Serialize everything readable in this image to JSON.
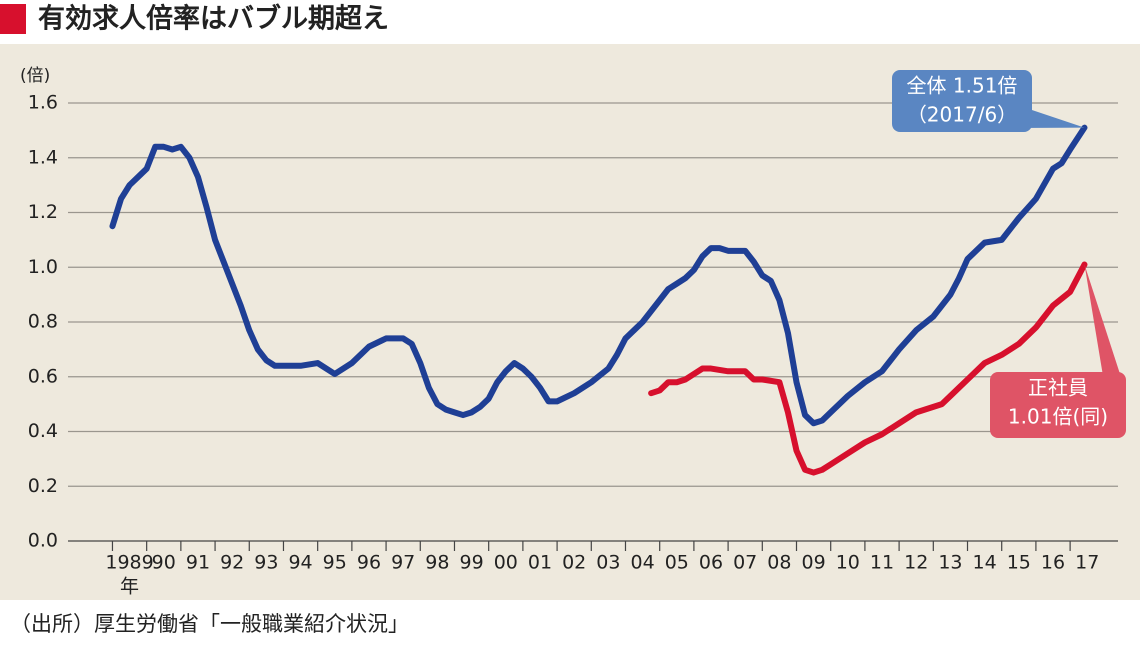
{
  "chart_data": {
    "type": "line",
    "title": "有効求人倍率はバブル期超え",
    "y_unit": "(倍)",
    "x_unit": "年",
    "source": "（出所）厚生労働省「一般職業紹介状況」",
    "xlim": [
      1987.7,
      2018.4
    ],
    "ylim": [
      0,
      1.6
    ],
    "yticks": [
      {
        "value": 0,
        "label": "0.0"
      },
      0.2,
      0.4,
      0.6,
      0.8,
      {
        "value": 1,
        "label": "1.0"
      },
      1.2,
      1.4,
      1.6
    ],
    "xticks": [
      {
        "value": 1989,
        "label": "1989"
      },
      {
        "value": 1990,
        "label": "90"
      },
      {
        "value": 1991,
        "label": "91"
      },
      {
        "value": 1992,
        "label": "92"
      },
      {
        "value": 1993,
        "label": "93"
      },
      {
        "value": 1994,
        "label": "94"
      },
      {
        "value": 1995,
        "label": "95"
      },
      {
        "value": 1996,
        "label": "96"
      },
      {
        "value": 1997,
        "label": "97"
      },
      {
        "value": 1998,
        "label": "98"
      },
      {
        "value": 1999,
        "label": "99"
      },
      {
        "value": 2000,
        "label": "00"
      },
      {
        "value": 2001,
        "label": "01"
      },
      {
        "value": 2002,
        "label": "02"
      },
      {
        "value": 2003,
        "label": "03"
      },
      {
        "value": 2004,
        "label": "04"
      },
      {
        "value": 2005,
        "label": "05"
      },
      {
        "value": 2006,
        "label": "06"
      },
      {
        "value": 2007,
        "label": "07"
      },
      {
        "value": 2008,
        "label": "08"
      },
      {
        "value": 2009,
        "label": "09"
      },
      {
        "value": 2010,
        "label": "10"
      },
      {
        "value": 2011,
        "label": "11"
      },
      {
        "value": 2012,
        "label": "12"
      },
      {
        "value": 2013,
        "label": "13"
      },
      {
        "value": 2014,
        "label": "14"
      },
      {
        "value": 2015,
        "label": "15"
      },
      {
        "value": 2016,
        "label": "16"
      },
      {
        "value": 2017,
        "label": "17"
      }
    ],
    "grid": true,
    "series": [
      {
        "name": "全体",
        "color": "#1f3f95",
        "x": [
          1989.0,
          1989.25,
          1989.5,
          1989.75,
          1990.0,
          1990.25,
          1990.5,
          1990.75,
          1991.0,
          1991.25,
          1991.5,
          1991.75,
          1992.0,
          1992.25,
          1992.5,
          1992.75,
          1993.0,
          1993.25,
          1993.5,
          1993.75,
          1994.0,
          1994.5,
          1995.0,
          1995.5,
          1996.0,
          1996.5,
          1997.0,
          1997.5,
          1997.75,
          1998.0,
          1998.25,
          1998.5,
          1998.75,
          1999.0,
          1999.25,
          1999.5,
          1999.75,
          2000.0,
          2000.25,
          2000.5,
          2000.75,
          2001.0,
          2001.25,
          2001.5,
          2001.75,
          2002.0,
          2002.5,
          2003.0,
          2003.5,
          2003.75,
          2004.0,
          2004.5,
          2005.0,
          2005.25,
          2005.5,
          2005.75,
          2006.0,
          2006.25,
          2006.5,
          2006.75,
          2007.0,
          2007.25,
          2007.5,
          2007.75,
          2008.0,
          2008.25,
          2008.5,
          2008.75,
          2009.0,
          2009.25,
          2009.5,
          2009.75,
          2010.0,
          2010.5,
          2011.0,
          2011.5,
          2012.0,
          2012.5,
          2013.0,
          2013.5,
          2013.75,
          2014.0,
          2014.5,
          2015.0,
          2015.5,
          2016.0,
          2016.5,
          2016.75,
          2017.0,
          2017.42
        ],
        "values": [
          1.15,
          1.25,
          1.3,
          1.33,
          1.36,
          1.44,
          1.44,
          1.43,
          1.44,
          1.4,
          1.33,
          1.22,
          1.1,
          1.02,
          0.94,
          0.86,
          0.77,
          0.7,
          0.66,
          0.64,
          0.64,
          0.64,
          0.65,
          0.61,
          0.65,
          0.71,
          0.74,
          0.74,
          0.72,
          0.65,
          0.56,
          0.5,
          0.48,
          0.47,
          0.46,
          0.47,
          0.49,
          0.52,
          0.58,
          0.62,
          0.65,
          0.63,
          0.6,
          0.56,
          0.51,
          0.51,
          0.54,
          0.58,
          0.63,
          0.68,
          0.74,
          0.8,
          0.88,
          0.92,
          0.94,
          0.96,
          0.99,
          1.04,
          1.07,
          1.07,
          1.06,
          1.06,
          1.06,
          1.02,
          0.97,
          0.95,
          0.88,
          0.76,
          0.58,
          0.46,
          0.43,
          0.44,
          0.47,
          0.53,
          0.58,
          0.62,
          0.7,
          0.77,
          0.82,
          0.9,
          0.96,
          1.03,
          1.09,
          1.1,
          1.18,
          1.25,
          1.36,
          1.38,
          1.43,
          1.51
        ]
      },
      {
        "name": "正社員",
        "color": "#d7102d",
        "x": [
          2004.75,
          2005.0,
          2005.25,
          2005.5,
          2005.75,
          2006.0,
          2006.25,
          2006.5,
          2007.0,
          2007.5,
          2007.75,
          2008.0,
          2008.5,
          2008.75,
          2009.0,
          2009.25,
          2009.5,
          2009.75,
          2010.0,
          2010.5,
          2011.0,
          2011.5,
          2012.0,
          2012.5,
          2013.0,
          2013.25,
          2013.5,
          2014.0,
          2014.5,
          2015.0,
          2015.5,
          2016.0,
          2016.5,
          2017.0,
          2017.42
        ],
        "values": [
          0.54,
          0.55,
          0.58,
          0.58,
          0.59,
          0.61,
          0.63,
          0.63,
          0.62,
          0.62,
          0.59,
          0.59,
          0.58,
          0.47,
          0.33,
          0.26,
          0.25,
          0.26,
          0.28,
          0.32,
          0.36,
          0.39,
          0.43,
          0.47,
          0.49,
          0.5,
          0.53,
          0.59,
          0.65,
          0.68,
          0.72,
          0.78,
          0.86,
          0.91,
          1.01
        ]
      }
    ],
    "annotations": [
      {
        "lines": [
          "全体 1.51倍",
          "（2017/6）"
        ],
        "color": "#5a86c2"
      },
      {
        "lines": [
          "正社員",
          "1.01倍(同)"
        ],
        "color": "#df5466"
      }
    ]
  }
}
